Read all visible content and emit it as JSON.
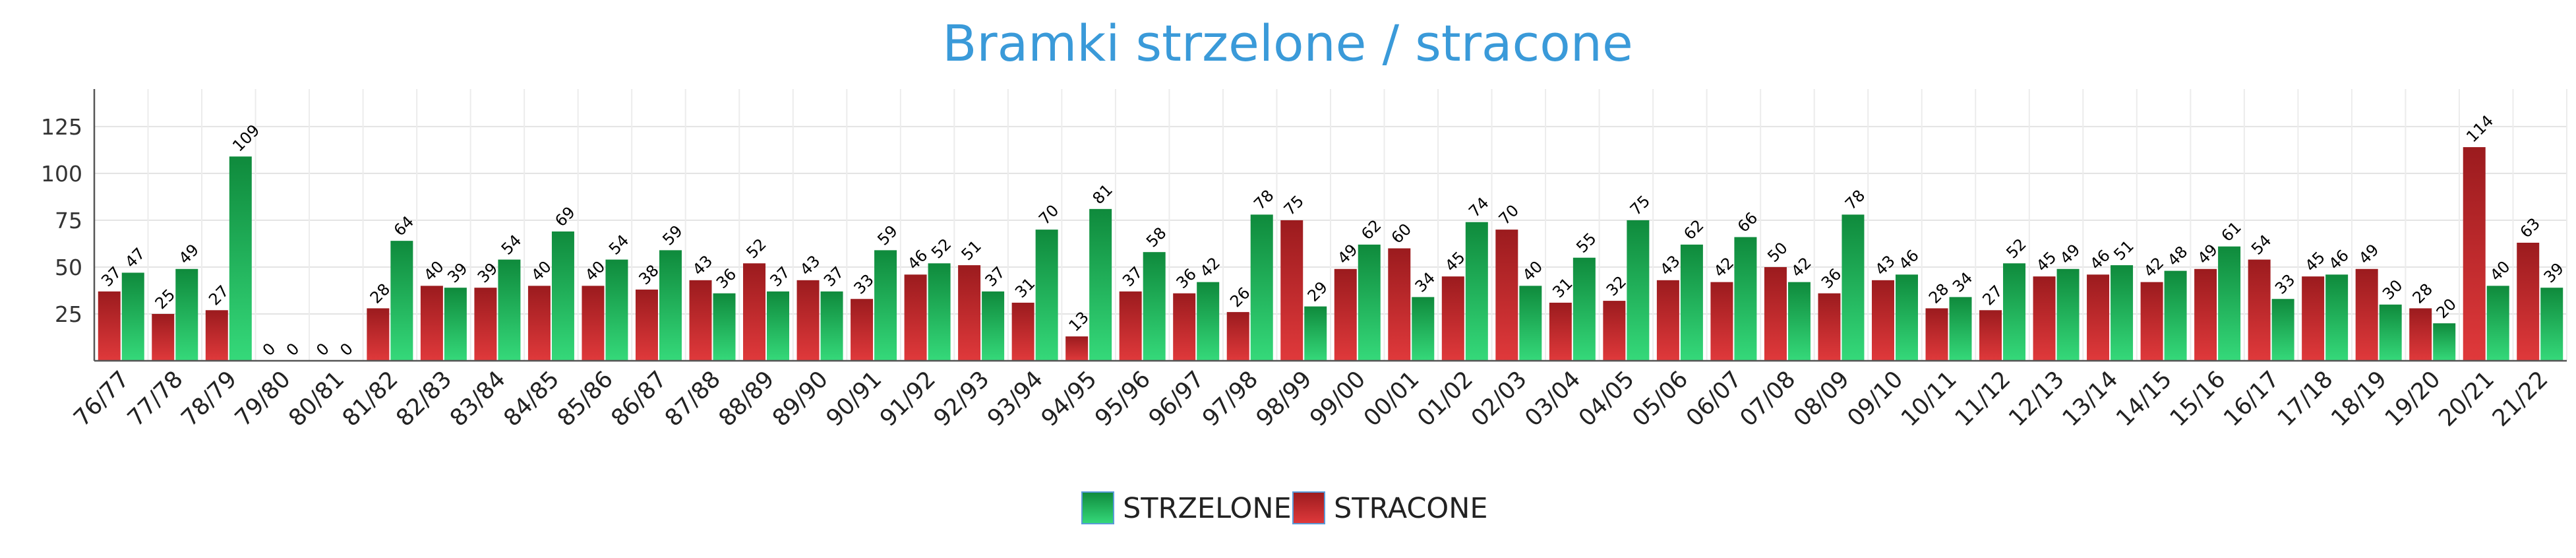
{
  "chart_data": {
    "type": "bar",
    "title": "Bramki strzelone / stracone",
    "xlabel": "",
    "ylabel": "",
    "ylim": [
      0,
      145
    ],
    "yticks": [
      25,
      50,
      75,
      100,
      125
    ],
    "grid": true,
    "legend_position": "bottom-center",
    "categories": [
      "76/77",
      "77/78",
      "78/79",
      "79/80",
      "80/81",
      "81/82",
      "82/83",
      "83/84",
      "84/85",
      "85/86",
      "86/87",
      "87/88",
      "88/89",
      "89/90",
      "90/91",
      "91/92",
      "92/93",
      "93/94",
      "94/95",
      "95/96",
      "96/97",
      "97/98",
      "98/99",
      "99/00",
      "00/01",
      "01/02",
      "02/03",
      "03/04",
      "04/05",
      "05/06",
      "06/07",
      "07/08",
      "08/09",
      "09/10",
      "10/11",
      "11/12",
      "12/13",
      "13/14",
      "14/15",
      "15/16",
      "16/17",
      "17/18",
      "18/19",
      "19/20",
      "20/21",
      "21/22"
    ],
    "series": [
      {
        "name": "STRACONE",
        "color": "#c0282b",
        "color_dark": "#9b1b1e",
        "color_light": "#e0393b",
        "values": [
          37,
          25,
          27,
          0,
          0,
          28,
          40,
          39,
          40,
          40,
          38,
          43,
          52,
          43,
          33,
          46,
          51,
          31,
          13,
          37,
          36,
          26,
          75,
          49,
          60,
          45,
          70,
          31,
          32,
          43,
          42,
          50,
          36,
          43,
          28,
          27,
          45,
          46,
          42,
          49,
          54,
          45,
          49,
          28,
          114,
          63
        ]
      },
      {
        "name": "STRZELONE",
        "color": "#1e9e4a",
        "color_dark": "#0f8a3c",
        "color_light": "#35d97a",
        "values": [
          47,
          49,
          109,
          0,
          0,
          64,
          39,
          54,
          69,
          54,
          59,
          36,
          37,
          37,
          59,
          52,
          37,
          70,
          81,
          58,
          42,
          78,
          29,
          62,
          34,
          74,
          40,
          55,
          75,
          62,
          66,
          42,
          78,
          46,
          34,
          52,
          49,
          51,
          48,
          61,
          33,
          46,
          30,
          20,
          40,
          39
        ]
      }
    ],
    "legend": [
      {
        "label": "STRZELONE",
        "series": "STRZELONE"
      },
      {
        "label": "STRACONE",
        "series": "STRACONE"
      }
    ]
  }
}
